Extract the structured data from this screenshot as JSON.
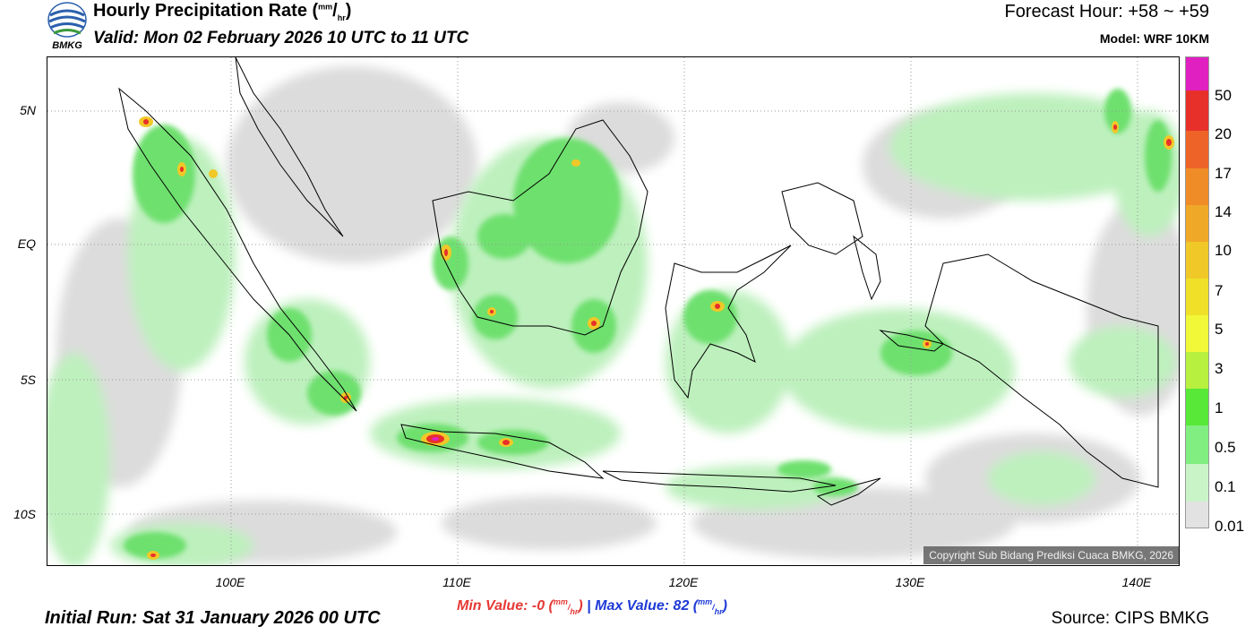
{
  "header": {
    "logo_text": "BMKG",
    "title_main": "Hourly Precipitation Rate (",
    "title_unit_num": "mm",
    "title_unit_sep": "/",
    "title_unit_den": "hr",
    "title_close": ")",
    "valid": "Valid: Mon 02 February 2026 10 UTC to 11 UTC",
    "forecast_hour": "Forecast Hour: +58 ~ +59",
    "model": "Model: WRF 10KM"
  },
  "map": {
    "lat_labels": [
      "5N",
      "EQ",
      "5S",
      "10S"
    ],
    "lon_labels": [
      "100E",
      "110E",
      "120E",
      "130E",
      "140E"
    ],
    "copyright": "Copyright Sub Bidang Prediksi Cuaca BMKG, 2026"
  },
  "colorbar": {
    "labels": [
      "50",
      "20",
      "17",
      "14",
      "10",
      "7",
      "5",
      "3",
      "1",
      "0.5",
      "0.1",
      "0.01"
    ],
    "colors": [
      "#e020c0",
      "#e8302a",
      "#ee6428",
      "#f08c28",
      "#f0a828",
      "#f0c828",
      "#f0e028",
      "#f0f838",
      "#b8f040",
      "#58e838",
      "#80ee80",
      "#c8f4c8",
      "#e2e2e2"
    ]
  },
  "footer": {
    "min_prefix": "Min Value:  -0 (",
    "max_prefix": "Max Value:  82 (",
    "unit_num": "mm",
    "unit_den": "hr",
    "unit_close": ")",
    "separator": "|",
    "initial_run": "Initial Run: Sat 31 January 2026 00 UTC",
    "source": "Source: CIPS BMKG"
  }
}
